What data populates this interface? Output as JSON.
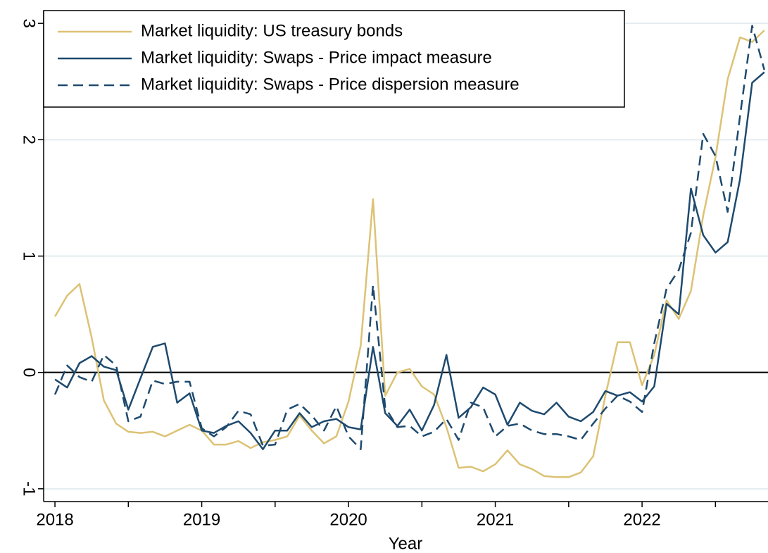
{
  "chart_data": {
    "type": "line",
    "x_label": "Year",
    "x": [
      2018,
      2018.083,
      2018.167,
      2018.25,
      2018.333,
      2018.417,
      2018.5,
      2018.583,
      2018.667,
      2018.75,
      2018.833,
      2018.917,
      2019,
      2019.083,
      2019.167,
      2019.25,
      2019.333,
      2019.417,
      2019.5,
      2019.583,
      2019.667,
      2019.75,
      2019.833,
      2019.917,
      2020,
      2020.083,
      2020.167,
      2020.25,
      2020.333,
      2020.417,
      2020.5,
      2020.583,
      2020.667,
      2020.75,
      2020.833,
      2020.917,
      2021,
      2021.083,
      2021.167,
      2021.25,
      2021.333,
      2021.417,
      2021.5,
      2021.583,
      2021.667,
      2021.75,
      2021.833,
      2021.917,
      2022,
      2022.083,
      2022.167,
      2022.25,
      2022.333,
      2022.417,
      2022.5,
      2022.583,
      2022.667,
      2022.75,
      2022.833
    ],
    "series": [
      {
        "name": "Market liquidity: US treasury bonds",
        "color": "#dcc274",
        "dash": "solid",
        "values": [
          0.48,
          0.66,
          0.76,
          0.3,
          -0.24,
          -0.44,
          -0.51,
          -0.52,
          -0.51,
          -0.55,
          -0.5,
          -0.45,
          -0.5,
          -0.62,
          -0.62,
          -0.59,
          -0.65,
          -0.6,
          -0.58,
          -0.55,
          -0.37,
          -0.5,
          -0.61,
          -0.55,
          -0.25,
          0.23,
          1.49,
          -0.2,
          0.0,
          0.03,
          -0.12,
          -0.19,
          -0.47,
          -0.82,
          -0.81,
          -0.85,
          -0.79,
          -0.67,
          -0.79,
          -0.83,
          -0.89,
          -0.9,
          -0.9,
          -0.86,
          -0.72,
          -0.2,
          0.26,
          0.26,
          -0.11,
          0.15,
          0.62,
          0.46,
          0.7,
          1.35,
          1.85,
          2.52,
          2.88,
          2.84,
          2.94
        ]
      },
      {
        "name": "Market liquidity: Swaps - Price impact measure",
        "color": "#1e4a6e",
        "dash": "solid",
        "values": [
          -0.06,
          -0.13,
          0.08,
          0.14,
          0.05,
          0.02,
          -0.32,
          -0.05,
          0.22,
          0.25,
          -0.26,
          -0.18,
          -0.5,
          -0.52,
          -0.46,
          -0.42,
          -0.52,
          -0.66,
          -0.5,
          -0.5,
          -0.35,
          -0.47,
          -0.42,
          -0.4,
          -0.47,
          -0.49,
          0.22,
          -0.35,
          -0.46,
          -0.32,
          -0.5,
          -0.28,
          0.15,
          -0.39,
          -0.3,
          -0.13,
          -0.19,
          -0.45,
          -0.26,
          -0.33,
          -0.36,
          -0.26,
          -0.38,
          -0.42,
          -0.34,
          -0.16,
          -0.2,
          -0.17,
          -0.25,
          -0.12,
          0.59,
          0.5,
          1.58,
          1.18,
          1.03,
          1.12,
          1.66,
          2.49,
          2.58
        ]
      },
      {
        "name": "Market liquidity: Swaps - Price dispersion measure",
        "color": "#1e4a6e",
        "dash": "dashed",
        "values": [
          -0.19,
          0.06,
          -0.04,
          -0.08,
          0.15,
          0.06,
          -0.42,
          -0.38,
          -0.07,
          -0.1,
          -0.08,
          -0.08,
          -0.48,
          -0.55,
          -0.47,
          -0.33,
          -0.36,
          -0.63,
          -0.62,
          -0.32,
          -0.27,
          -0.37,
          -0.5,
          -0.29,
          -0.55,
          -0.66,
          0.75,
          -0.3,
          -0.47,
          -0.46,
          -0.55,
          -0.51,
          -0.4,
          -0.58,
          -0.26,
          -0.3,
          -0.55,
          -0.46,
          -0.44,
          -0.5,
          -0.53,
          -0.53,
          -0.55,
          -0.58,
          -0.44,
          -0.31,
          -0.2,
          -0.25,
          -0.34,
          0.25,
          0.72,
          0.88,
          1.2,
          2.05,
          1.86,
          1.38,
          2.2,
          2.98,
          2.6
        ]
      }
    ],
    "xlim": [
      2017.923,
      2022.858
    ],
    "xticks": [
      2018,
      2019,
      2020,
      2021,
      2022
    ],
    "xminorticks": [
      2018.5,
      2019.5,
      2020.5,
      2021.5,
      2022.5
    ],
    "ylim": [
      -1.11,
      3.11
    ],
    "yticks": [
      -1,
      0,
      1,
      2,
      3
    ],
    "yline": 0,
    "grid": true,
    "legend": "top-left"
  }
}
